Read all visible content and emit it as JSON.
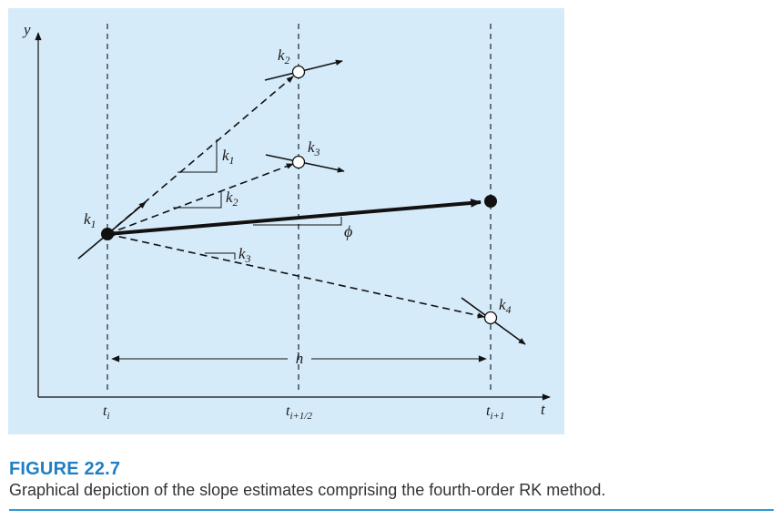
{
  "figure": {
    "axes": {
      "y_label": "y",
      "x_label": "t"
    },
    "ticks": {
      "t_i": [
        "t",
        "i"
      ],
      "t_half": [
        "t",
        "i+1/2"
      ],
      "t_next": [
        "t",
        "i+1"
      ]
    },
    "labels": {
      "k1_point": [
        "k",
        "1"
      ],
      "k2_point": [
        "k",
        "2"
      ],
      "k3_point": [
        "k",
        "3"
      ],
      "k4_point": [
        "k",
        "4"
      ],
      "k1_slope": [
        "k",
        "1"
      ],
      "k2_slope": [
        "k",
        "2"
      ],
      "k3_slope": [
        "k",
        "3"
      ],
      "phi": "ϕ",
      "h": "h"
    }
  },
  "caption": {
    "title": "FIGURE 22.7",
    "text": "Graphical depiction of the slope estimates comprising the fourth-order RK method."
  },
  "colors": {
    "panel": "#d6ebf9",
    "caption_title": "#1f7fc4",
    "rule": "#2a9ad8"
  }
}
